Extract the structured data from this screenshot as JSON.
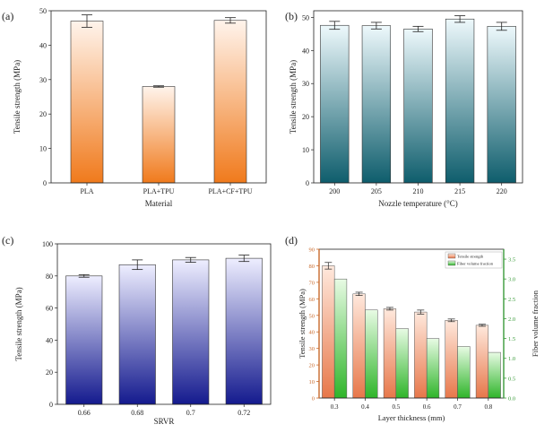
{
  "colors": {
    "a_top": "#fff4ec",
    "a_bottom": "#f07a1c",
    "b_top": "#eef9fc",
    "b_bottom": "#0e5d6c",
    "c_top": "#eeeeff",
    "c_bottom": "#141a8e",
    "d_ts_top": "#ffe9dd",
    "d_ts_bottom": "#e7774a",
    "d_fv_top": "#e8fbe4",
    "d_fv_bottom": "#2fb52a",
    "d_left_axis": "#c96a2c",
    "d_right_axis": "#3a9b3a"
  },
  "chart_data": [
    {
      "panel": "(a)",
      "type": "bar",
      "categories": [
        "PLA",
        "PLA+TPU",
        "PLA+CF+TPU"
      ],
      "values": [
        47,
        28,
        47.2
      ],
      "errors": [
        1.8,
        0.2,
        0.8
      ],
      "xlabel": "Material",
      "ylabel": "Tensile strength (MPa)",
      "ylim": [
        0,
        50
      ],
      "yticks": [
        0,
        10,
        20,
        30,
        40,
        50
      ],
      "grid": false
    },
    {
      "panel": "(b)",
      "type": "bar",
      "categories": [
        "200",
        "205",
        "210",
        "215",
        "220"
      ],
      "values": [
        47.6,
        47.5,
        46.5,
        49.5,
        47.3
      ],
      "errors": [
        1.2,
        1.0,
        0.8,
        1.0,
        1.2
      ],
      "xlabel": "Nozzle temperature (°C)",
      "ylabel": "Tensile strength (MPa)",
      "ylim": [
        0,
        52
      ],
      "yticks": [
        0,
        10,
        20,
        30,
        40,
        50
      ],
      "grid": false
    },
    {
      "panel": "(c)",
      "type": "bar",
      "categories": [
        "0.66",
        "0.68",
        "0.7",
        "0.72"
      ],
      "values": [
        80,
        87,
        90,
        91
      ],
      "errors": [
        0.8,
        3,
        1.5,
        2
      ],
      "xlabel": "SRVR",
      "ylabel": "Tensile strength (MPa)",
      "ylim": [
        0,
        100
      ],
      "yticks": [
        0,
        20,
        40,
        60,
        80,
        100
      ],
      "grid": false
    },
    {
      "panel": "(d)",
      "type": "bar",
      "categories": [
        "0.3",
        "0.4",
        "0.5",
        "0.6",
        "0.7",
        "0.8"
      ],
      "series": [
        {
          "name": "Tensile strength",
          "axis": "left",
          "values": [
            80,
            63,
            54,
            52,
            47,
            44
          ],
          "errors": [
            2,
            1,
            0.8,
            1.2,
            0.8,
            0.6
          ]
        },
        {
          "name": "Fiber volume fraction",
          "axis": "right",
          "values": [
            3.0,
            2.22,
            1.75,
            1.5,
            1.3,
            1.15
          ]
        }
      ],
      "xlabel": "Layer thickness (mm)",
      "ylabel": "Tensile strength (MPa)",
      "ylabel_right": "Fiber volume fraction",
      "ylim": [
        0,
        90
      ],
      "yticks": [
        0,
        10,
        20,
        30,
        40,
        50,
        60,
        70,
        80,
        90
      ],
      "ylim_right": [
        0,
        3.75
      ],
      "yticks_right": [
        "0.0",
        "0.5",
        "1.0",
        "1.5",
        "2.0",
        "2.5",
        "3.0",
        "3.5"
      ],
      "legend_position": "top-right",
      "grid": false
    }
  ]
}
